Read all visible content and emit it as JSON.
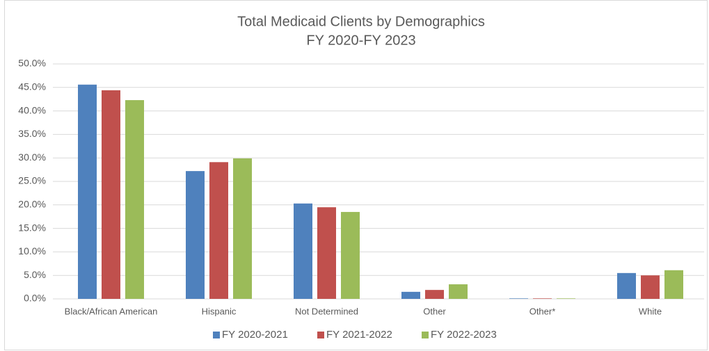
{
  "chart_data": {
    "type": "bar",
    "title": "Total Medicaid Clients by Demographics",
    "subtitle": "FY 2020-FY 2023",
    "categories": [
      "Black/African American",
      "Hispanic",
      "Not Determined",
      "Other",
      "Other*",
      "White"
    ],
    "series": [
      {
        "name": "FY 2020-2021",
        "color": "#4f81bd",
        "values": [
          45.6,
          27.2,
          20.3,
          1.5,
          0.1,
          5.5
        ]
      },
      {
        "name": "FY 2021-2022",
        "color": "#c0504d",
        "values": [
          44.4,
          29.1,
          19.5,
          1.9,
          0.1,
          5.0
        ]
      },
      {
        "name": "FY 2022-2023",
        "color": "#9bbb59",
        "values": [
          42.3,
          29.9,
          18.5,
          3.1,
          0.1,
          6.1
        ]
      }
    ],
    "ylim": [
      0,
      50
    ],
    "yticks": [
      {
        "value": 0,
        "label": "0.0%"
      },
      {
        "value": 5,
        "label": "5.0%"
      },
      {
        "value": 10,
        "label": "10.0%"
      },
      {
        "value": 15,
        "label": "15.0%"
      },
      {
        "value": 20,
        "label": "20.0%"
      },
      {
        "value": 25,
        "label": "25.0%"
      },
      {
        "value": 30,
        "label": "30.0%"
      },
      {
        "value": 35,
        "label": "35.0%"
      },
      {
        "value": 40,
        "label": "40.0%"
      },
      {
        "value": 45,
        "label": "45.0%"
      },
      {
        "value": 50,
        "label": "50.0%"
      }
    ],
    "grid": true,
    "legend": "bottom"
  }
}
